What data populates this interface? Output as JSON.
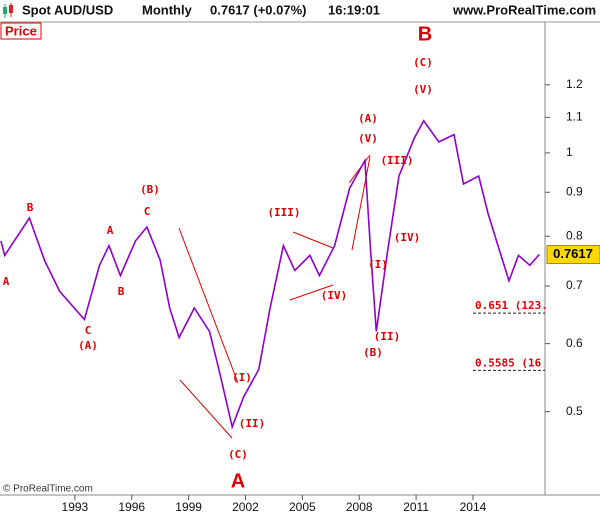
{
  "header": {
    "title": "Spot AUD/USD",
    "period": "Monthly",
    "quote": "0.7617 (+0.07%)",
    "time": "16:19:01",
    "site": "www.ProRealTime.com"
  },
  "panel_label": "Price",
  "copyright": "© ProRealTime.com",
  "chart_data": {
    "type": "line",
    "color": "#9000c8",
    "y_scale": "log",
    "x": [
      1989.1,
      1989.3,
      1990.6,
      1991.4,
      1992.2,
      1993.5,
      1994.3,
      1994.8,
      1995.4,
      1996.2,
      1996.8,
      1997.5,
      1998.0,
      1998.5,
      1999.3,
      2000.1,
      2000.6,
      2001.3,
      2001.9,
      2002.7,
      2003.3,
      2004.0,
      2004.6,
      2005.4,
      2005.9,
      2006.7,
      2007.5,
      2008.3,
      2008.6,
      2008.9,
      2009.5,
      2010.1,
      2010.9,
      2011.4,
      2012.2,
      2013.0,
      2013.5,
      2014.3,
      2014.8,
      2015.4,
      2015.9,
      2016.4,
      2017.0,
      2017.5
    ],
    "values": [
      0.79,
      0.76,
      0.84,
      0.75,
      0.69,
      0.64,
      0.74,
      0.78,
      0.72,
      0.79,
      0.82,
      0.75,
      0.66,
      0.61,
      0.66,
      0.62,
      0.56,
      0.48,
      0.52,
      0.56,
      0.66,
      0.78,
      0.73,
      0.76,
      0.72,
      0.78,
      0.91,
      0.98,
      0.77,
      0.62,
      0.77,
      0.94,
      1.04,
      1.09,
      1.03,
      1.05,
      0.92,
      0.94,
      0.85,
      0.77,
      0.71,
      0.76,
      0.74,
      0.7617
    ],
    "xlim": [
      1989.05,
      2017.8
    ],
    "xticks": [
      1993,
      1996,
      1999,
      2002,
      2005,
      2008,
      2011,
      2014
    ],
    "ylim": [
      0.4,
      1.42
    ],
    "yticks": [
      0.5,
      0.6,
      0.7,
      0.8,
      0.9,
      1,
      1.1,
      1.2
    ],
    "last_value": 0.7617,
    "levels": [
      {
        "value": 0.651,
        "label": "0.651 (123."
      },
      {
        "value": 0.5585,
        "label": "0.5585 (16"
      }
    ],
    "annotations": [
      "A",
      "B",
      "C",
      "(A)",
      "A",
      "B",
      "C",
      "(B)",
      "(III)",
      "(IV)",
      "(A)",
      "(V)",
      "(C)",
      "(V)",
      "B",
      "(III)",
      "(IV)",
      "(I)",
      "(II)",
      "(B)",
      "(I)",
      "(II)",
      "(C)",
      "A"
    ]
  }
}
